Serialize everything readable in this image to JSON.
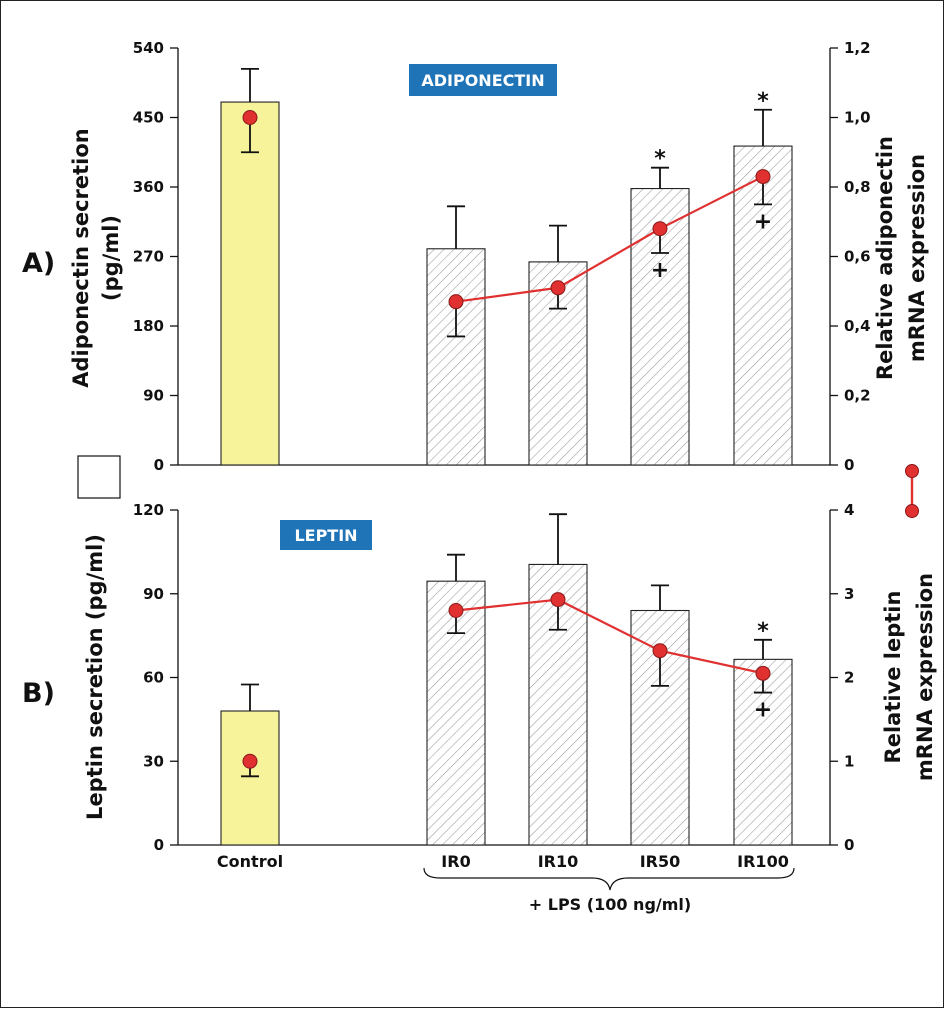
{
  "colors": {
    "control_bar": "#f6f39a",
    "mrna_line": "#e03030",
    "badge": "#1f73b7"
  },
  "chart_data": [
    {
      "panel_label": "A)",
      "type": "bar",
      "badge": "ADIPONECTIN",
      "ylabel_left": [
        "Adiponectin secretion",
        "(pg/ml)"
      ],
      "ylabel_right": [
        "Relative adiponectin",
        "mRNA expression"
      ],
      "yticks_left": [
        "0",
        "90",
        "180",
        "270",
        "360",
        "450",
        "540"
      ],
      "yticks_right": [
        "0",
        "0,2",
        "0,4",
        "0,6",
        "0,8",
        "1,0",
        "1,2"
      ],
      "ylim_left": [
        0,
        540
      ],
      "ylim_right": [
        0,
        1.2
      ],
      "categories": [
        "Control",
        "IR0",
        "IR10",
        "IR50",
        "IR100"
      ],
      "bars": [
        {
          "value": 470,
          "error": 43
        },
        {
          "value": 280,
          "error": 55
        },
        {
          "value": 263,
          "error": 47
        },
        {
          "value": 358,
          "error": 27
        },
        {
          "value": 413,
          "error": 47
        }
      ],
      "mrna": [
        {
          "value": 1.0,
          "error": 0.1
        },
        {
          "value": 0.47,
          "error": 0.1
        },
        {
          "value": 0.51,
          "error": 0.06
        },
        {
          "value": 0.68,
          "error": 0.07
        },
        {
          "value": 0.83,
          "error": 0.08
        }
      ],
      "stars": [
        null,
        null,
        null,
        "*",
        "*"
      ],
      "crosses": [
        null,
        null,
        null,
        "+",
        "+"
      ]
    },
    {
      "panel_label": "B)",
      "type": "bar",
      "badge": "LEPTIN",
      "ylabel_left": [
        "Leptin secretion (pg/ml)"
      ],
      "ylabel_right": [
        "Relative leptin",
        "mRNA expression"
      ],
      "yticks_left": [
        "0",
        "30",
        "60",
        "90",
        "120"
      ],
      "yticks_right": [
        "0",
        "1",
        "2",
        "3",
        "4"
      ],
      "ylim_left": [
        0,
        120
      ],
      "ylim_right": [
        0,
        4
      ],
      "categories": [
        "Control",
        "IR0",
        "IR10",
        "IR50",
        "IR100"
      ],
      "bars": [
        {
          "value": 48,
          "error": 9.5
        },
        {
          "value": 94.5,
          "error": 9.5
        },
        {
          "value": 100.5,
          "error": 18
        },
        {
          "value": 84,
          "error": 9
        },
        {
          "value": 66.5,
          "error": 7
        }
      ],
      "mrna": [
        {
          "value": 1.0,
          "error": 0.18
        },
        {
          "value": 2.8,
          "error": 0.27
        },
        {
          "value": 2.93,
          "error": 0.36
        },
        {
          "value": 2.32,
          "error": 0.42
        },
        {
          "value": 2.05,
          "error": 0.23
        }
      ],
      "stars": [
        null,
        null,
        null,
        null,
        "*"
      ],
      "crosses": [
        null,
        null,
        null,
        null,
        "+"
      ]
    }
  ],
  "x_group_label": "+ LPS (100 ng/ml)"
}
